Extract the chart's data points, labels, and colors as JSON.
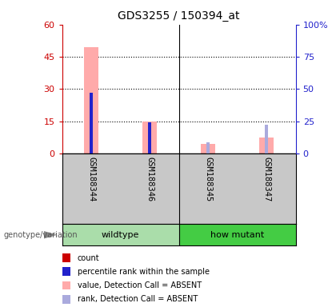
{
  "title": "GDS3255 / 150394_at",
  "samples": [
    "GSM188344",
    "GSM188346",
    "GSM188345",
    "GSM188347"
  ],
  "count_values": [
    0,
    0,
    0,
    0
  ],
  "percentile_rank_pct": [
    47.0,
    24.0,
    0,
    0
  ],
  "absent_value": [
    49.5,
    15.0,
    4.5,
    7.5
  ],
  "absent_rank_pct": [
    47.0,
    24.0,
    8.5,
    22.5
  ],
  "ylim_left": [
    0,
    60
  ],
  "ylim_right": [
    0,
    100
  ],
  "yticks_left": [
    0,
    15,
    30,
    45,
    60
  ],
  "ytick_labels_left": [
    "0",
    "15",
    "30",
    "45",
    "60"
  ],
  "yticks_right": [
    0,
    25,
    50,
    75,
    100
  ],
  "ytick_labels_right": [
    "0",
    "25",
    "50",
    "75",
    "100%"
  ],
  "color_count": "#cc0000",
  "color_percentile": "#2222cc",
  "color_absent_value": "#ffaaaa",
  "color_absent_rank": "#aaaadd",
  "left_axis_color": "#cc0000",
  "right_axis_color": "#2222cc",
  "background_label": "#c8c8c8",
  "background_group_wt": "#aaddaa",
  "background_group_hm": "#44cc44",
  "legend_items": [
    {
      "label": "count",
      "color": "#cc0000"
    },
    {
      "label": "percentile rank within the sample",
      "color": "#2222cc"
    },
    {
      "label": "value, Detection Call = ABSENT",
      "color": "#ffaaaa"
    },
    {
      "label": "rank, Detection Call = ABSENT",
      "color": "#aaaadd"
    }
  ],
  "genotype_label": "genotype/variation",
  "wt_label": "wildtype",
  "hm_label": "how mutant"
}
